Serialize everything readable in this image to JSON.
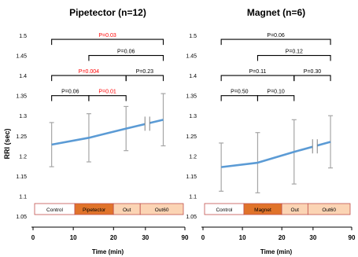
{
  "colors": {
    "line": "#5b9bd5",
    "error_bar": "#a6a6a6",
    "bracket": "#000000",
    "sig_text": "#ff0000",
    "text": "#000000",
    "phase_control": "#ffffff",
    "phase_stim": "#e0732a",
    "phase_out": "#fbd4b4",
    "phase_border": "#c0504d"
  },
  "chart_data": [
    {
      "type": "line",
      "title": "Pipetector (n=12)",
      "ylabel": "RRI (sec)",
      "xlabel": "Time (min)",
      "ylim": [
        1.05,
        1.5
      ],
      "yticks": [
        "1.05",
        "1.1",
        "1.15",
        "1.2",
        "1.25",
        "1.3",
        "1.35",
        "1.4",
        "1.45",
        "1.5"
      ],
      "xticks": [
        "0",
        "10",
        "20",
        "30",
        "90"
      ],
      "grid": false,
      "axis_break": true,
      "series": [
        {
          "x": [
            5,
            15,
            25,
            35
          ],
          "y": [
            1.228,
            1.245,
            1.268,
            1.29
          ],
          "err": [
            0.055,
            0.06,
            0.055,
            0.065
          ]
        }
      ],
      "phases": [
        "Control",
        "Pipetector",
        "Out",
        "Out60"
      ],
      "comparisons": [
        {
          "text": "P=0.03",
          "significant": true,
          "from": 5,
          "to": 35,
          "y": 1.49
        },
        {
          "text": "P=0.06",
          "significant": false,
          "from": 15,
          "to": 35,
          "y": 1.45
        },
        {
          "text": "P=0.004",
          "significant": true,
          "from": 5,
          "to": 25,
          "y": 1.4
        },
        {
          "text": "P=0.23",
          "significant": false,
          "from": 25,
          "to": 35,
          "y": 1.4
        },
        {
          "text": "P=0.06",
          "significant": false,
          "from": 5,
          "to": 15,
          "y": 1.35
        },
        {
          "text": "P=0.01",
          "significant": true,
          "from": 15,
          "to": 25,
          "y": 1.35
        }
      ]
    },
    {
      "type": "line",
      "title": "Magnet (n=6)",
      "ylabel": "",
      "xlabel": "Time (min)",
      "ylim": [
        1.05,
        1.5
      ],
      "yticks": [
        "1.05",
        "1.1",
        "1.15",
        "1.2",
        "1.25",
        "1.3",
        "1.35",
        "1.4",
        "1.45",
        "1.5"
      ],
      "xticks": [
        "0",
        "10",
        "20",
        "30",
        "90"
      ],
      "grid": false,
      "axis_break": true,
      "series": [
        {
          "x": [
            5,
            15,
            25,
            35
          ],
          "y": [
            1.172,
            1.183,
            1.21,
            1.235
          ],
          "err": [
            0.06,
            0.075,
            0.08,
            0.065
          ]
        }
      ],
      "phases": [
        "Control",
        "Magnet",
        "Out",
        "Out60"
      ],
      "comparisons": [
        {
          "text": "P=0.06",
          "significant": false,
          "from": 5,
          "to": 35,
          "y": 1.49
        },
        {
          "text": "P=0.12",
          "significant": false,
          "from": 15,
          "to": 35,
          "y": 1.45
        },
        {
          "text": "P=0.11",
          "significant": false,
          "from": 5,
          "to": 25,
          "y": 1.4
        },
        {
          "text": "P=0.30",
          "significant": false,
          "from": 25,
          "to": 35,
          "y": 1.4
        },
        {
          "text": "P=0.50",
          "significant": false,
          "from": 5,
          "to": 15,
          "y": 1.35
        },
        {
          "text": "P=0.10",
          "significant": false,
          "from": 15,
          "to": 25,
          "y": 1.35
        }
      ]
    }
  ]
}
